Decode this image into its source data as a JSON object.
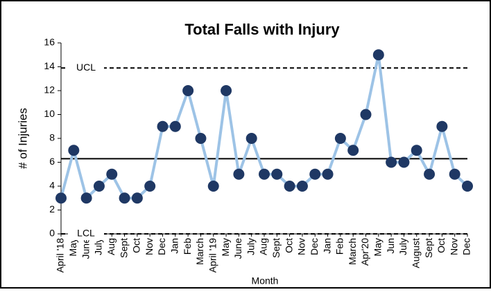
{
  "chart_data": {
    "type": "line",
    "title": "Total Falls with Injury",
    "x_label": "Month",
    "y_label": "# of Injuries",
    "categories": [
      "April '18",
      "May",
      "June",
      "July",
      "Aug",
      "Sept",
      "Oct",
      "Nov",
      "Dec",
      "Jan",
      "Feb",
      "March",
      "April '19",
      "May",
      "June",
      "July",
      "Aug",
      "Sept",
      "Oct",
      "Nov",
      "Dec",
      "Jan",
      "Feb",
      "March",
      "Apr'20",
      "May",
      "Jun",
      "July",
      "August",
      "Sept",
      "Oct",
      "Nov",
      "Dec"
    ],
    "values": [
      3,
      7,
      3,
      4,
      5,
      3,
      3,
      4,
      9,
      9,
      12,
      8,
      4,
      12,
      5,
      8,
      5,
      5,
      4,
      4,
      5,
      5,
      8,
      7,
      10,
      15,
      6,
      6,
      7,
      5,
      9,
      5,
      4
    ],
    "line_color": "#9dc3e6",
    "marker_color": "#1f3864",
    "ylim": [
      0,
      16
    ],
    "yticks": [
      0,
      2,
      4,
      6,
      8,
      10,
      12,
      14,
      16
    ],
    "grid": false,
    "reference_lines": [
      {
        "label": "UCL",
        "value": 13.9,
        "dashed": true
      },
      {
        "label": "LCL",
        "value": 0,
        "dashed": true
      },
      {
        "value": 6.3,
        "dashed": false
      }
    ]
  }
}
